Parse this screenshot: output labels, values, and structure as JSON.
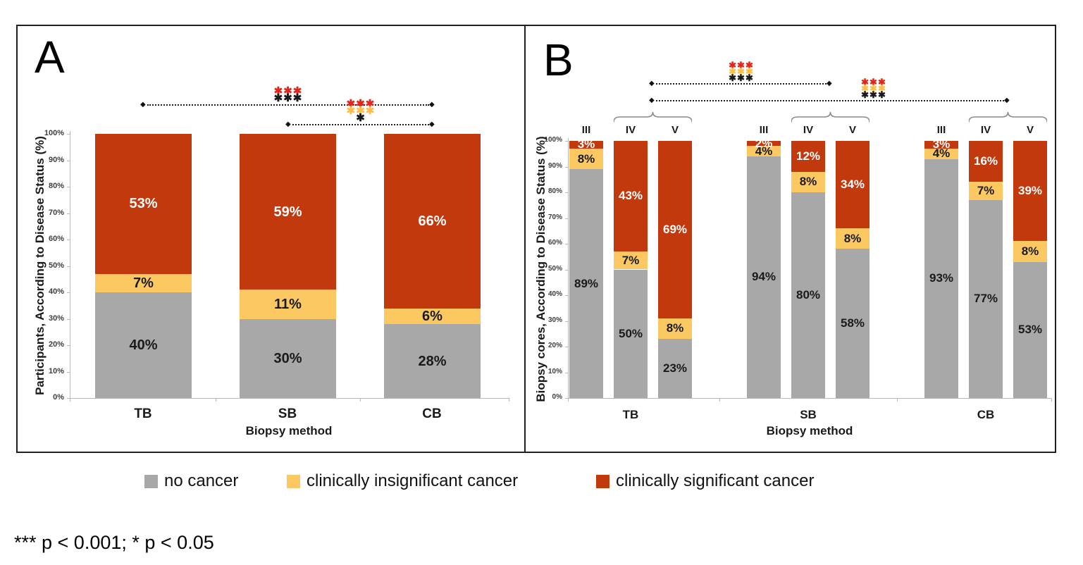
{
  "figure": {
    "panel_a_letter": "A",
    "panel_b_letter": "B"
  },
  "palette": {
    "no_cancer": "#a8a8a8",
    "insignificant_cancer": "#fcc862",
    "significant_cancer": "#c2390d",
    "star_red": "#e4251b",
    "star_yellow": "#fcbf4a",
    "star_black": "#1a1a1a",
    "brace_line": "#8a8a8a",
    "axis_line": "#b9b9b9"
  },
  "legend": {
    "position": "bottom",
    "items": [
      {
        "label": "no cancer",
        "color": "#a8a8a8"
      },
      {
        "label": "clinically insignificant cancer",
        "color": "#fcc862"
      },
      {
        "label": "clinically significant cancer",
        "color": "#c2390d"
      }
    ]
  },
  "footnote": "*** p < 0.001; * p < 0.05",
  "chart_data": [
    {
      "panel": "A",
      "type": "bar",
      "stacked": true,
      "title_letter": "A",
      "ylabel": "Participants, According to Disease Status (%)",
      "xlabel": "Biopsy method",
      "ylim": [
        0,
        100
      ],
      "grid": false,
      "ytick_labels": [
        "0%",
        "10%",
        "20%",
        "30%",
        "40%",
        "50%",
        "60%",
        "70%",
        "80%",
        "90%",
        "100%"
      ],
      "categories": [
        "TB",
        "SB",
        "CB"
      ],
      "value_suffix": "%",
      "series": [
        {
          "name": "no cancer",
          "color": "#a8a8a8",
          "label_color": "#1a1a1a",
          "values": [
            40,
            30,
            28
          ]
        },
        {
          "name": "clinically insignificant cancer",
          "color": "#fcc862",
          "label_color": "#1a1a1a",
          "values": [
            7,
            11,
            6
          ]
        },
        {
          "name": "clinically significant cancer",
          "color": "#c2390d",
          "label_color": "#ffffff",
          "values": [
            53,
            59,
            66
          ]
        }
      ],
      "significance": [
        {
          "between": [
            "TB",
            "CB"
          ],
          "star_rows": [
            {
              "color": "star_red",
              "text": "***"
            },
            {
              "color": "star_black",
              "text": "***"
            }
          ]
        },
        {
          "between": [
            "SB",
            "CB"
          ],
          "star_rows": [
            {
              "color": "star_red",
              "text": "***"
            },
            {
              "color": "star_yellow",
              "text": "***"
            },
            {
              "color": "star_black",
              "text": "*"
            }
          ]
        }
      ]
    },
    {
      "panel": "B",
      "type": "bar",
      "stacked": true,
      "title_letter": "B",
      "ylabel": "Biopsy cores, According to Disease Status (%)",
      "xlabel": "Biopsy method",
      "ylim": [
        0,
        100
      ],
      "grid": false,
      "ytick_labels": [
        "0%",
        "10%",
        "20%",
        "30%",
        "40%",
        "50%",
        "60%",
        "70%",
        "80%",
        "90%",
        "100%"
      ],
      "groups": [
        "TB",
        "SB",
        "CB"
      ],
      "subgroups": [
        "III",
        "IV",
        "V"
      ],
      "categories": [
        "TB III",
        "TB IV",
        "TB V",
        "SB III",
        "SB IV",
        "SB V",
        "CB III",
        "CB IV",
        "CB V"
      ],
      "value_suffix": "%",
      "series": [
        {
          "name": "no cancer",
          "color": "#a8a8a8",
          "label_color": "#1a1a1a",
          "values": [
            89,
            50,
            23,
            94,
            80,
            58,
            93,
            77,
            53
          ]
        },
        {
          "name": "clinically insignificant cancer",
          "color": "#fcc862",
          "label_color": "#1a1a1a",
          "values": [
            8,
            7,
            8,
            4,
            8,
            8,
            4,
            7,
            8
          ]
        },
        {
          "name": "clinically significant cancer",
          "color": "#c2390d",
          "label_color": "#ffffff",
          "values": [
            3,
            43,
            69,
            2,
            12,
            34,
            3,
            16,
            39
          ]
        }
      ],
      "brace_groups": [
        {
          "group": "TB",
          "over": [
            "IV",
            "V"
          ]
        },
        {
          "group": "SB",
          "over": [
            "IV",
            "V"
          ]
        },
        {
          "group": "CB",
          "over": [
            "IV",
            "V"
          ]
        }
      ],
      "significance": [
        {
          "between": [
            "TB IV+V",
            "SB IV+V"
          ],
          "star_rows": [
            {
              "color": "star_red",
              "text": "***"
            },
            {
              "color": "star_yellow",
              "text": "***"
            },
            {
              "color": "star_black",
              "text": "***"
            }
          ]
        },
        {
          "between": [
            "TB IV+V",
            "CB IV+V"
          ],
          "star_rows": [
            {
              "color": "star_red",
              "text": "***"
            },
            {
              "color": "star_yellow",
              "text": "***"
            },
            {
              "color": "star_black",
              "text": "***"
            }
          ]
        }
      ]
    }
  ]
}
